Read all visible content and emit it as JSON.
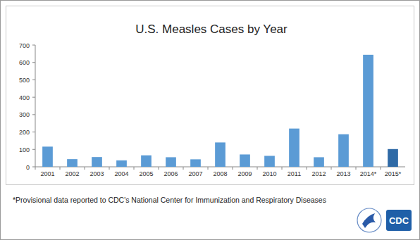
{
  "chart_data": {
    "type": "bar",
    "title": "U.S. Measles Cases by Year",
    "categories": [
      "2001",
      "2002",
      "2003",
      "2004",
      "2005",
      "2006",
      "2007",
      "2008",
      "2009",
      "2010",
      "2011",
      "2012",
      "2013",
      "2014*",
      "2015*"
    ],
    "values": [
      116,
      44,
      56,
      37,
      66,
      55,
      43,
      140,
      71,
      63,
      220,
      55,
      187,
      644,
      102
    ],
    "colors": [
      "#5b9bd5",
      "#5b9bd5",
      "#5b9bd5",
      "#5b9bd5",
      "#5b9bd5",
      "#5b9bd5",
      "#5b9bd5",
      "#5b9bd5",
      "#5b9bd5",
      "#5b9bd5",
      "#5b9bd5",
      "#5b9bd5",
      "#5b9bd5",
      "#5b9bd5",
      "#2f6aa6"
    ],
    "ylim": [
      0,
      700
    ],
    "yticks": [
      0,
      100,
      200,
      300,
      400,
      500,
      600,
      700
    ],
    "grid": false,
    "annotations": [
      "*Provisional data reported to CDC's National Center for Immunization and Respiratory Diseases",
      "CDC"
    ]
  }
}
